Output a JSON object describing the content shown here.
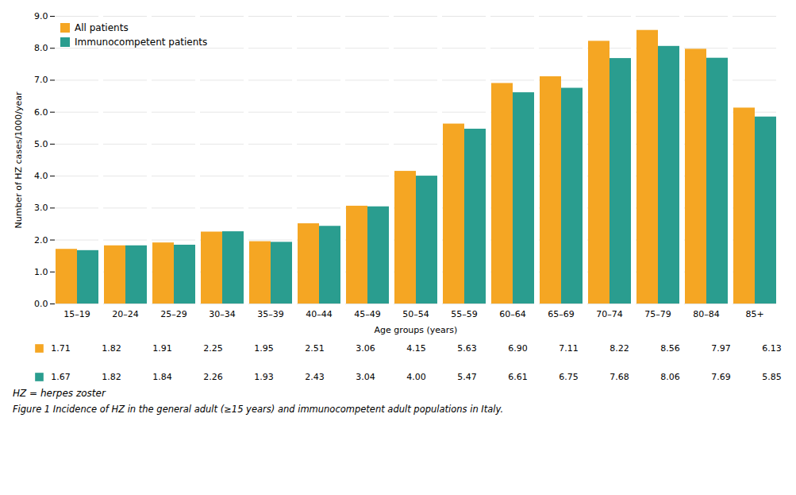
{
  "chart_data": {
    "type": "bar",
    "categories": [
      "15–19",
      "20–24",
      "25–29",
      "30–34",
      "35–39",
      "40–44",
      "45–49",
      "50–54",
      "55–59",
      "60–64",
      "65–69",
      "70–74",
      "75–79",
      "80–84",
      "85+"
    ],
    "series": [
      {
        "name": "All patients",
        "color": "#F5A623",
        "values": [
          1.71,
          1.82,
          1.91,
          2.25,
          1.95,
          2.51,
          3.06,
          4.15,
          5.63,
          6.9,
          7.11,
          8.22,
          8.56,
          7.97,
          6.13
        ],
        "value_labels": [
          "1.71",
          "1.82",
          "1.91",
          "2.25",
          "1.95",
          "2.51",
          "3.06",
          "4.15",
          "5.63",
          "6.90",
          "7.11",
          "8.22",
          "8.56",
          "7.97",
          "6.13"
        ]
      },
      {
        "name": "Immunocompetent patients",
        "color": "#2A9D8F",
        "values": [
          1.67,
          1.82,
          1.84,
          2.26,
          1.93,
          2.43,
          3.04,
          4.0,
          5.47,
          6.61,
          6.75,
          7.68,
          8.06,
          7.69,
          5.85
        ],
        "value_labels": [
          "1.67",
          "1.82",
          "1.84",
          "2.26",
          "1.93",
          "2.43",
          "3.04",
          "4.00",
          "5.47",
          "6.61",
          "6.75",
          "7.68",
          "8.06",
          "7.69",
          "5.85"
        ]
      }
    ],
    "xlabel": "Age groups (years)",
    "ylabel": "Number of HZ cases/1000/year",
    "ylim": [
      0.0,
      9.0
    ],
    "yticks": [
      {
        "value": 0,
        "label": "0.0"
      },
      {
        "value": 1,
        "label": "1.0"
      },
      {
        "value": 2,
        "label": "2.0"
      },
      {
        "value": 3,
        "label": "3.0"
      },
      {
        "value": 4,
        "label": "4.0"
      },
      {
        "value": 5,
        "label": "5.0"
      },
      {
        "value": 6,
        "label": "6.0"
      },
      {
        "value": 7,
        "label": "7.0"
      },
      {
        "value": 8,
        "label": "8.0"
      },
      {
        "value": 9,
        "label": "9.0"
      }
    ],
    "grid": true,
    "legend": "upper left",
    "data_labels": true,
    "annotations": [
      "HZ = herpes zoster"
    ],
    "caption": "Figure 1 Incidence of HZ in the general adult (≥15 years) and immunocompetent adult populations in Italy."
  }
}
